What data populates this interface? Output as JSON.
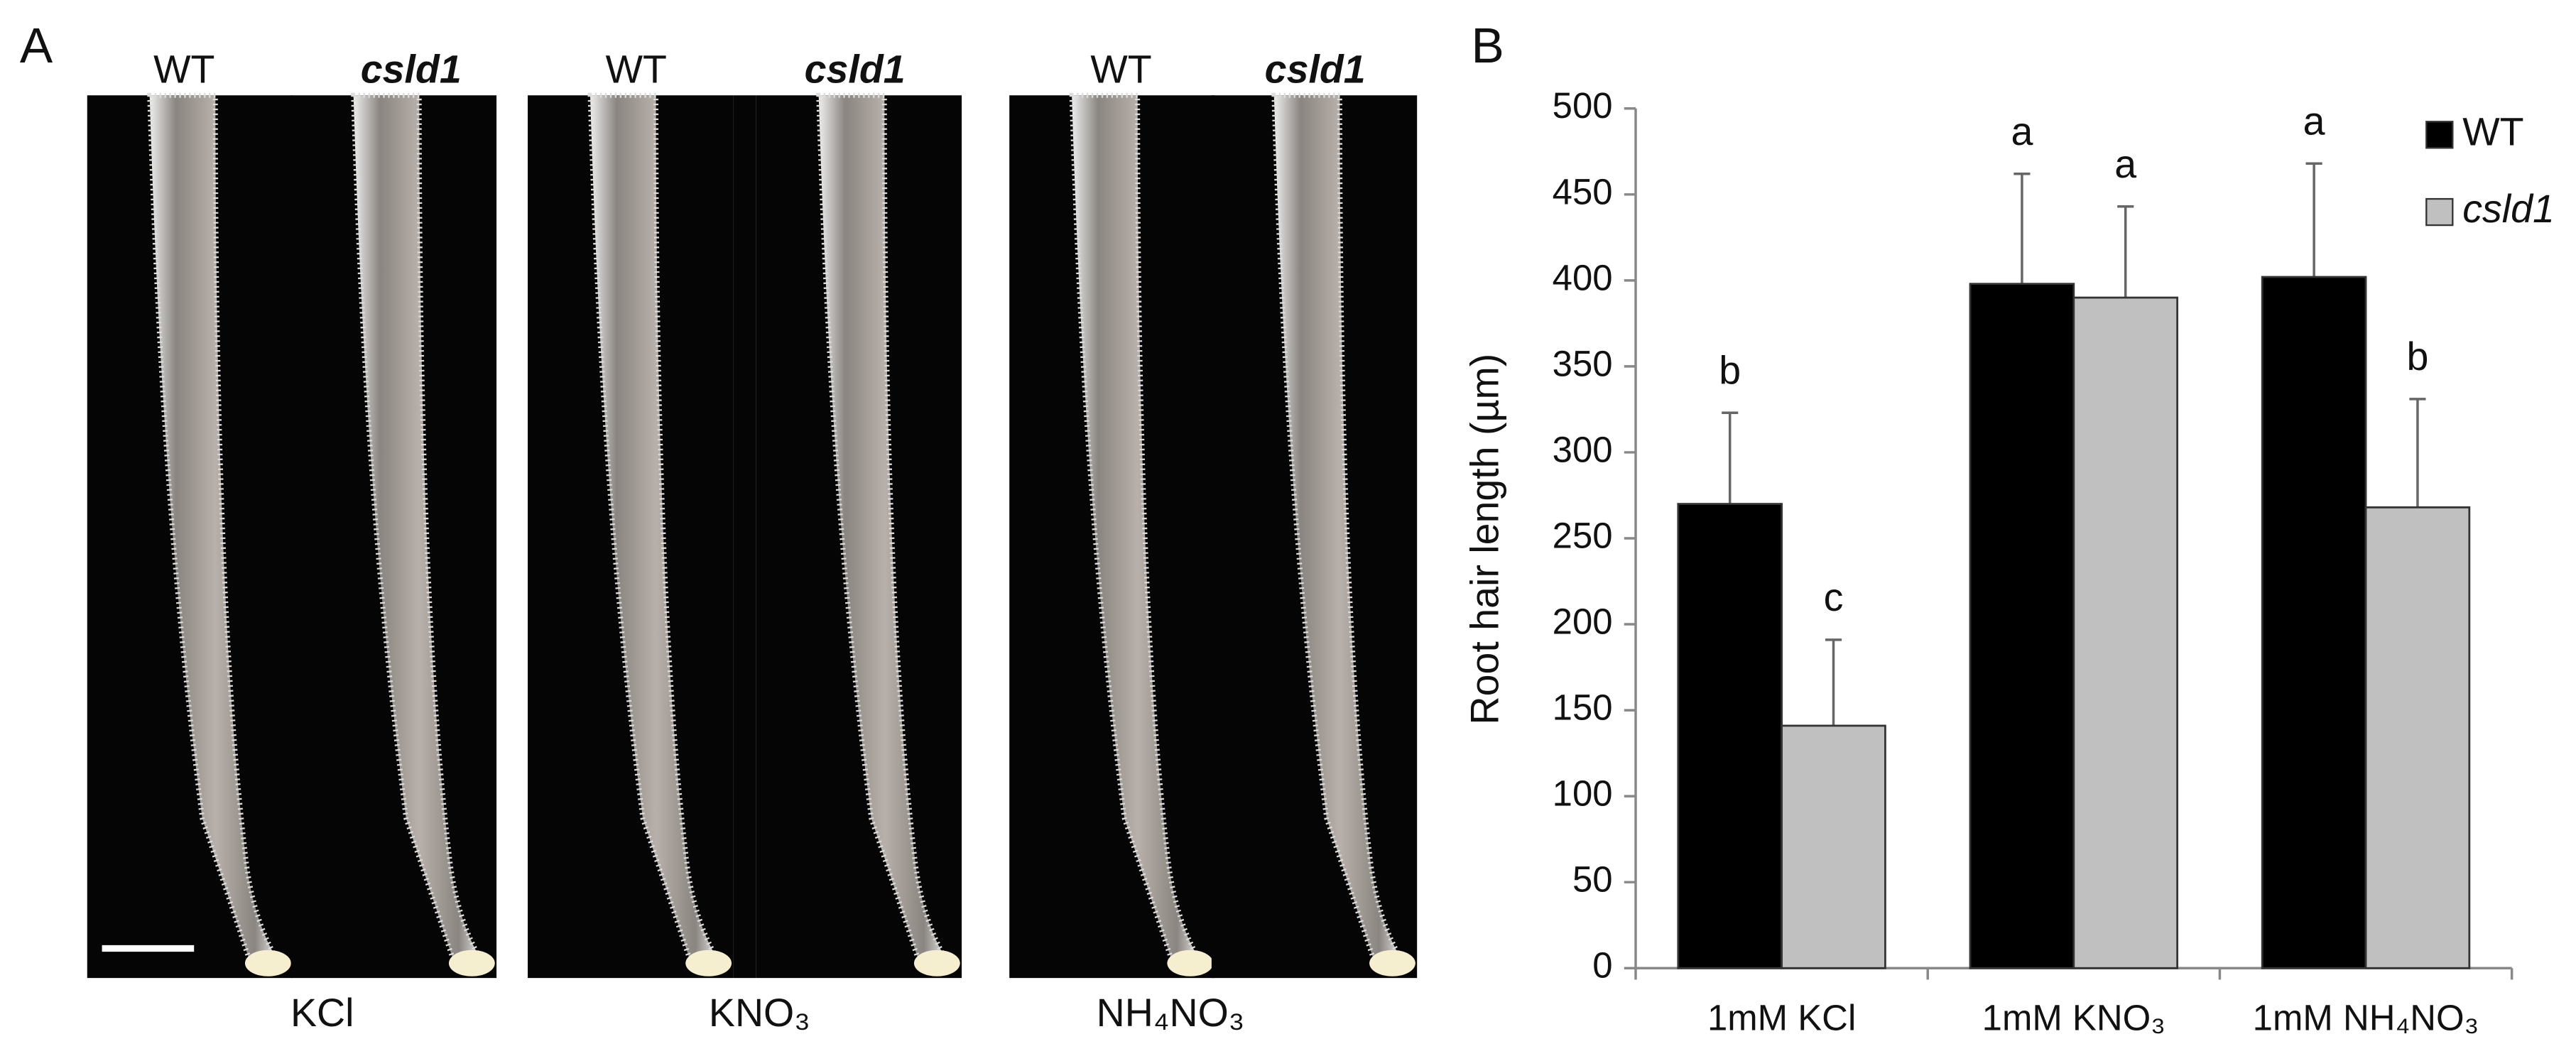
{
  "panel_a": {
    "label": "A",
    "genotypes": [
      "WT",
      "csld1"
    ],
    "treatments": [
      "KCl",
      "KNO₃",
      "NH₄NO₃"
    ]
  },
  "chart_data": {
    "type": "bar",
    "label": "B",
    "ylabel": "Root hair length (µm)",
    "categories": [
      "1mM KCl",
      "1mM KNO₃",
      "1mM NH₄NO₃"
    ],
    "series": [
      {
        "name": "WT",
        "color": "#000000",
        "values": [
          270,
          398,
          402
        ],
        "errors": [
          53,
          64,
          66
        ],
        "letters": [
          "b",
          "a",
          "a"
        ]
      },
      {
        "name": "csld1",
        "color": "#c0c0c0",
        "values": [
          141,
          390,
          268
        ],
        "errors": [
          50,
          53,
          63
        ],
        "letters": [
          "c",
          "a",
          "b"
        ]
      }
    ],
    "ylim": [
      0,
      500
    ],
    "yticks": [
      0,
      50,
      100,
      150,
      200,
      250,
      300,
      350,
      400,
      450,
      500
    ],
    "legend": "top-right"
  }
}
